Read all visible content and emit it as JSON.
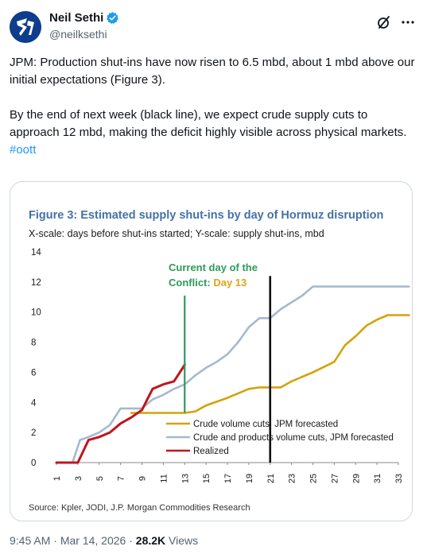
{
  "author": {
    "display_name": "Neil Sethi",
    "handle": "@neilksethi",
    "verified": true,
    "avatar_colors": {
      "bg": "#0d3d8c",
      "fg": "#ffffff"
    }
  },
  "tweet": {
    "paragraphs": [
      "JPM: Production shut-ins have now risen to 6.5 mbd, about 1 mbd above our initial expectations (Figure 3).",
      "By the end of next week (black line), we expect crude supply cuts to approach 12 mbd, making the deficit highly visible across physical markets."
    ],
    "hashtag": "#oott"
  },
  "meta": {
    "time": "9:45 AM",
    "separator": "·",
    "date": "Mar 14, 2026",
    "views_count": "28.2K",
    "views_label": "Views"
  },
  "icons": {
    "verified": "verified-badge-icon",
    "grok": "grok-icon",
    "more": "more-options-icon"
  },
  "colors": {
    "accent": "#1d9bf0",
    "text": "#0f1419",
    "muted": "#536471",
    "crude": "#d4a20c",
    "crude_products": "#a5b9cf",
    "realized": "#c0151b",
    "current_day": "#2e9a5a",
    "title": "#4472a8"
  },
  "chart_data": {
    "type": "line",
    "title": "Figure 3: Estimated supply shut-ins by day of Hormuz disruption",
    "subtitle": "X-scale: days before shut-ins started; Y-scale: supply shut-ins, mbd",
    "source": "Source: Kpler, JODI, J.P. Morgan Commodities Research",
    "xlim": [
      1,
      33
    ],
    "ylim": [
      0,
      14
    ],
    "y_ticks": [
      0,
      2,
      4,
      6,
      8,
      10,
      12,
      14
    ],
    "x_ticks": [
      1,
      3,
      5,
      7,
      9,
      11,
      13,
      15,
      17,
      19,
      21,
      23,
      25,
      27,
      29,
      31,
      33
    ],
    "grid": false,
    "legend_placement": "bottom-center",
    "series": [
      {
        "name": "Crude volume cuts, JPM forecasted",
        "color": "#d4a20c",
        "points": [
          [
            8,
            3.3
          ],
          [
            13,
            3.3
          ],
          [
            14,
            3.4
          ],
          [
            15,
            3.8
          ],
          [
            17,
            4.3
          ],
          [
            19,
            4.9
          ],
          [
            20,
            5.0
          ],
          [
            22,
            5.0
          ],
          [
            23,
            5.4
          ],
          [
            25,
            6.0
          ],
          [
            27,
            6.7
          ],
          [
            28,
            7.8
          ],
          [
            29,
            8.4
          ],
          [
            30,
            9.1
          ],
          [
            31,
            9.5
          ],
          [
            32,
            9.8
          ],
          [
            34,
            9.8
          ]
        ]
      },
      {
        "name": "Crude and products volume cuts, JPM forecasted",
        "color": "#a5b9cf",
        "points": [
          [
            1,
            0
          ],
          [
            2.5,
            0
          ],
          [
            3.2,
            1.5
          ],
          [
            4,
            1.7
          ],
          [
            5,
            2.0
          ],
          [
            6,
            2.5
          ],
          [
            7,
            3.6
          ],
          [
            8,
            3.6
          ],
          [
            9,
            3.6
          ],
          [
            10,
            4.2
          ],
          [
            11,
            4.5
          ],
          [
            12,
            4.9
          ],
          [
            13,
            5.2
          ],
          [
            14,
            5.8
          ],
          [
            15,
            6.3
          ],
          [
            16,
            6.7
          ],
          [
            17,
            7.2
          ],
          [
            18,
            8.0
          ],
          [
            19,
            9.0
          ],
          [
            20,
            9.6
          ],
          [
            21,
            9.6
          ],
          [
            22,
            10.2
          ],
          [
            24,
            11.1
          ],
          [
            25,
            11.7
          ],
          [
            27,
            11.7
          ],
          [
            29,
            11.7
          ],
          [
            31,
            11.7
          ],
          [
            34,
            11.7
          ]
        ]
      },
      {
        "name": "Realized",
        "color": "#c0151b",
        "points": [
          [
            1,
            0
          ],
          [
            3,
            0
          ],
          [
            4,
            1.5
          ],
          [
            5,
            1.7
          ],
          [
            6,
            2.0
          ],
          [
            7,
            2.6
          ],
          [
            8,
            3.0
          ],
          [
            9,
            3.5
          ],
          [
            10,
            4.9
          ],
          [
            11,
            5.2
          ],
          [
            12,
            5.4
          ],
          [
            13,
            6.5
          ]
        ]
      }
    ],
    "annotations": [
      {
        "text": "Current day of the",
        "x": 13,
        "y_top": 11.1,
        "color": "#2e9a5a"
      },
      {
        "text": "Conflict: ",
        "highlight": "Day 13",
        "highlight_color": "#e0a21a"
      }
    ],
    "vertical_lines": [
      {
        "name": "current-day",
        "x": 13,
        "y_from": 3.3,
        "y_to": 11.1,
        "color": "#2e9a5a"
      },
      {
        "name": "end-of-next-week",
        "x": 21,
        "y_from": 0,
        "y_to": 12.4,
        "color": "#0f0f0f"
      }
    ]
  }
}
